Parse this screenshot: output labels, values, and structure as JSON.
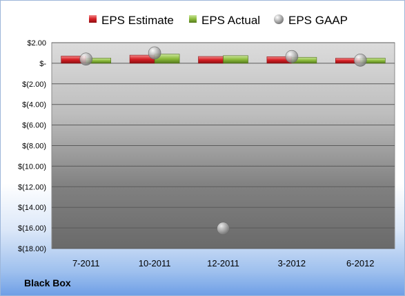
{
  "company_label": "Black Box",
  "chart_data": {
    "type": "bar",
    "categories": [
      "7-2011",
      "10-2011",
      "12-2011",
      "3-2012",
      "6-2012"
    ],
    "series": [
      {
        "name": "EPS Estimate",
        "kind": "bar",
        "color": "#e0262b",
        "values": [
          0.7,
          0.79,
          0.66,
          0.64,
          0.49
        ]
      },
      {
        "name": "EPS Actual",
        "kind": "bar",
        "color": "#8cbc3c",
        "values": [
          0.5,
          0.89,
          0.74,
          0.58,
          0.5
        ]
      },
      {
        "name": "EPS GAAP",
        "kind": "marker",
        "color": "#b0b0b0",
        "values": [
          0.41,
          1.0,
          -16.05,
          0.65,
          0.3
        ]
      }
    ],
    "ylim": [
      -18,
      2
    ],
    "yticks": [
      2,
      0,
      -2,
      -4,
      -6,
      -8,
      -10,
      -12,
      -14,
      -16,
      -18
    ],
    "ytick_labels": [
      "$2.00",
      "$-",
      "$(2.00)",
      "$(4.00)",
      "$(6.00)",
      "$(8.00)",
      "$(10.00)",
      "$(12.00)",
      "$(14.00)",
      "$(16.00)",
      "$(18.00)"
    ],
    "grid": true,
    "legend_position": "top",
    "title": "",
    "xlabel": "",
    "ylabel": ""
  }
}
